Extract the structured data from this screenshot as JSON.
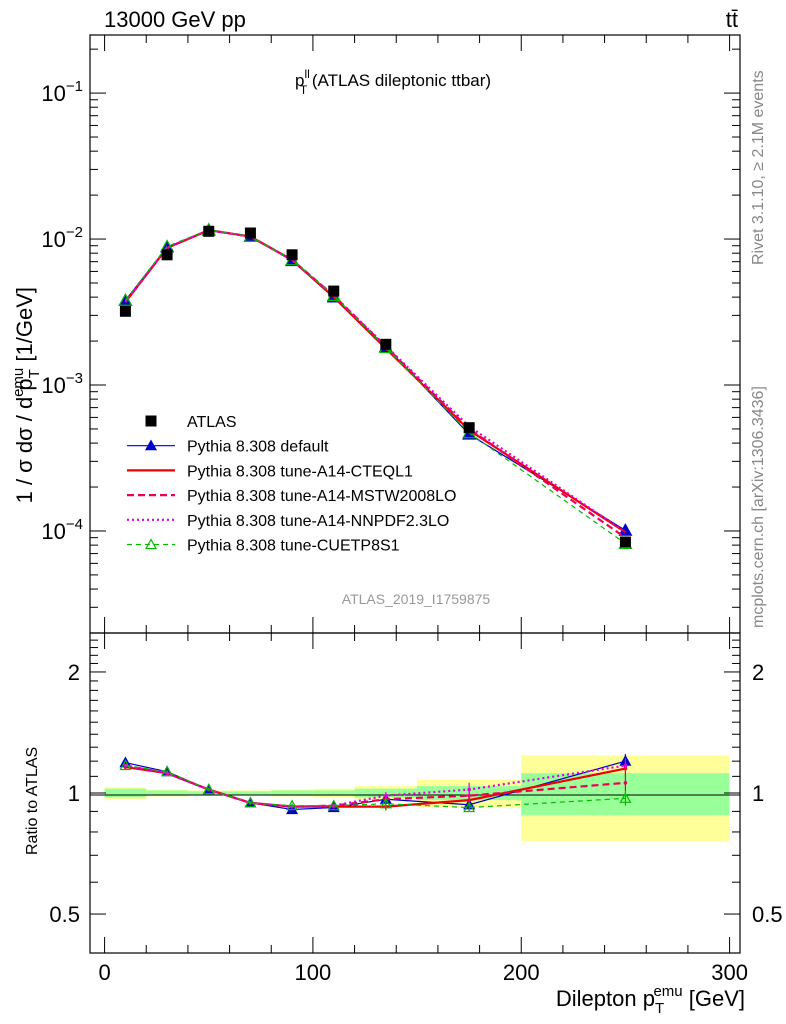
{
  "header": {
    "left": "13000 GeV pp",
    "right": "tt̄"
  },
  "side_labels": {
    "top": "Rivet 3.1.10, ≥ 2.1M events",
    "bottom": "mcplots.cern.ch [arXiv:1306.3436]"
  },
  "colors": {
    "data": "#000000",
    "default": "#0000cc",
    "a14_cteql1": "#ee0000",
    "a14_mstw": "#ee0055",
    "a14_nnpdf": "#dd00dd",
    "cuetp8s1": "#00bb00",
    "band_inner": "#99ff99",
    "band_outer": "#ffff99"
  },
  "chart_data": [
    {
      "type": "line",
      "title": "p_T^ll (ATLAS dileptonic ttbar)",
      "title_main": "p",
      "title_sup": "ll",
      "title_sub": "T",
      "title_rest": " (ATLAS dileptonic ttbar)",
      "watermark": "ATLAS_2019_I1759875",
      "y_scale": "log",
      "ylim": [
        2e-05,
        0.25
      ],
      "xlim": [
        -7,
        305
      ],
      "ylabel_parts": {
        "a": "1 / σ  dσ / d p",
        "sub": "T",
        "sup": "emu",
        "b": " [1/GeV]"
      },
      "y_ticks": [
        {
          "v": 0.1,
          "base": "10",
          "exp": "−1"
        },
        {
          "v": 0.01,
          "base": "10",
          "exp": "−2"
        },
        {
          "v": 0.001,
          "base": "10",
          "exp": "−3"
        },
        {
          "v": 0.0001,
          "base": "10",
          "exp": "−4"
        }
      ],
      "x": [
        10,
        30,
        50,
        70,
        90,
        110,
        135,
        175,
        250
      ],
      "data_series": {
        "name": "ATLAS",
        "values": [
          0.0032,
          0.0078,
          0.0113,
          0.011,
          0.0078,
          0.0044,
          0.0019,
          0.00051,
          8.4e-05
        ]
      },
      "series": [
        {
          "name": "Pythia 8.308 default",
          "key": "default",
          "values": [
            0.0038,
            0.0088,
            0.0115,
            0.0104,
            0.0071,
            0.004,
            0.00183,
            0.00046,
            0.000101
          ]
        },
        {
          "name": "Pythia 8.308 tune-A14-CTEQL1",
          "key": "a14_cteql1",
          "values": [
            0.0037,
            0.0087,
            0.0115,
            0.0104,
            0.0072,
            0.004,
            0.00178,
            0.00049,
            9.8e-05
          ]
        },
        {
          "name": "Pythia 8.308 tune-A14-MSTW2008LO",
          "key": "a14_mstw",
          "values": [
            0.0037,
            0.0087,
            0.0115,
            0.0104,
            0.0072,
            0.0041,
            0.00183,
            0.0005,
            9e-05
          ]
        },
        {
          "name": "Pythia 8.308 tune-A14-NNPDF2.3LO",
          "key": "a14_nnpdf",
          "values": [
            0.0037,
            0.0087,
            0.0115,
            0.0104,
            0.0072,
            0.0041,
            0.00185,
            0.00052,
            9.8e-05
          ]
        },
        {
          "name": "Pythia 8.308 tune-CUETP8S1",
          "key": "cuetp8s1",
          "values": [
            0.0038,
            0.0089,
            0.0116,
            0.0104,
            0.0072,
            0.0041,
            0.0018,
            0.00047,
            8.2e-05
          ]
        }
      ],
      "legend": "left-middle"
    },
    {
      "type": "line",
      "ylabel": "Ratio to ATLAS",
      "y_scale": "log",
      "ylim": [
        0.4,
        2.5
      ],
      "xlim": [
        -7,
        305
      ],
      "xlabel_parts": {
        "a": "Dilepton p",
        "sub": "T",
        "sup": "emu",
        "b": " [GeV]"
      },
      "x_ticks": [
        0,
        100,
        200,
        300
      ],
      "y_ticks": [
        {
          "v": 0.5,
          "label": "0.5"
        },
        {
          "v": 1,
          "label": "1"
        },
        {
          "v": 2,
          "label": "2"
        }
      ],
      "bins": [
        {
          "lo": 0,
          "hi": 20,
          "inner": [
            0.975,
            1.025
          ],
          "outer": [
            0.965,
            1.035
          ]
        },
        {
          "lo": 20,
          "hi": 40,
          "inner": [
            0.985,
            1.015
          ],
          "outer": [
            0.98,
            1.02
          ]
        },
        {
          "lo": 40,
          "hi": 60,
          "inner": [
            0.99,
            1.01
          ],
          "outer": [
            0.985,
            1.015
          ]
        },
        {
          "lo": 60,
          "hi": 80,
          "inner": [
            0.99,
            1.01
          ],
          "outer": [
            0.985,
            1.015
          ]
        },
        {
          "lo": 80,
          "hi": 100,
          "inner": [
            0.985,
            1.015
          ],
          "outer": [
            0.98,
            1.02
          ]
        },
        {
          "lo": 100,
          "hi": 120,
          "inner": [
            0.985,
            1.015
          ],
          "outer": [
            0.975,
            1.025
          ]
        },
        {
          "lo": 120,
          "hi": 150,
          "inner": [
            0.975,
            1.025
          ],
          "outer": [
            0.96,
            1.04
          ]
        },
        {
          "lo": 150,
          "hi": 200,
          "inner": [
            0.96,
            1.04
          ],
          "outer": [
            0.92,
            1.08
          ]
        },
        {
          "lo": 200,
          "hi": 300,
          "inner": [
            0.88,
            1.12
          ],
          "outer": [
            0.76,
            1.24
          ]
        }
      ],
      "series": [
        {
          "key": "default",
          "values": [
            1.19,
            1.13,
            1.02,
            0.945,
            0.91,
            0.92,
            0.965,
            0.935,
            1.2
          ],
          "err": [
            0.01,
            0.01,
            0.01,
            0.01,
            0.01,
            0.01,
            0.02,
            0.03,
            0.05
          ]
        },
        {
          "key": "a14_cteql1",
          "values": [
            1.16,
            1.12,
            1.02,
            0.945,
            0.925,
            0.925,
            0.925,
            0.96,
            1.15
          ],
          "err": [
            0.01,
            0.01,
            0.01,
            0.01,
            0.01,
            0.01,
            0.02,
            0.03,
            0.05
          ]
        },
        {
          "key": "a14_mstw",
          "values": [
            1.17,
            1.12,
            1.02,
            0.945,
            0.925,
            0.93,
            0.965,
            0.985,
            1.06
          ],
          "err": [
            0.01,
            0.01,
            0.01,
            0.01,
            0.01,
            0.01,
            0.02,
            0.03,
            0.05
          ]
        },
        {
          "key": "a14_nnpdf",
          "values": [
            1.17,
            1.12,
            1.02,
            0.945,
            0.925,
            0.93,
            0.985,
            1.02,
            1.17
          ],
          "err": [
            0.01,
            0.01,
            0.01,
            0.01,
            0.01,
            0.01,
            0.02,
            0.04,
            0.05
          ]
        },
        {
          "key": "cuetp8s1",
          "values": [
            1.17,
            1.13,
            1.02,
            0.945,
            0.93,
            0.93,
            0.94,
            0.92,
            0.97
          ],
          "err": [
            0.01,
            0.01,
            0.01,
            0.01,
            0.01,
            0.01,
            0.02,
            0.02,
            0.04
          ]
        }
      ]
    }
  ]
}
